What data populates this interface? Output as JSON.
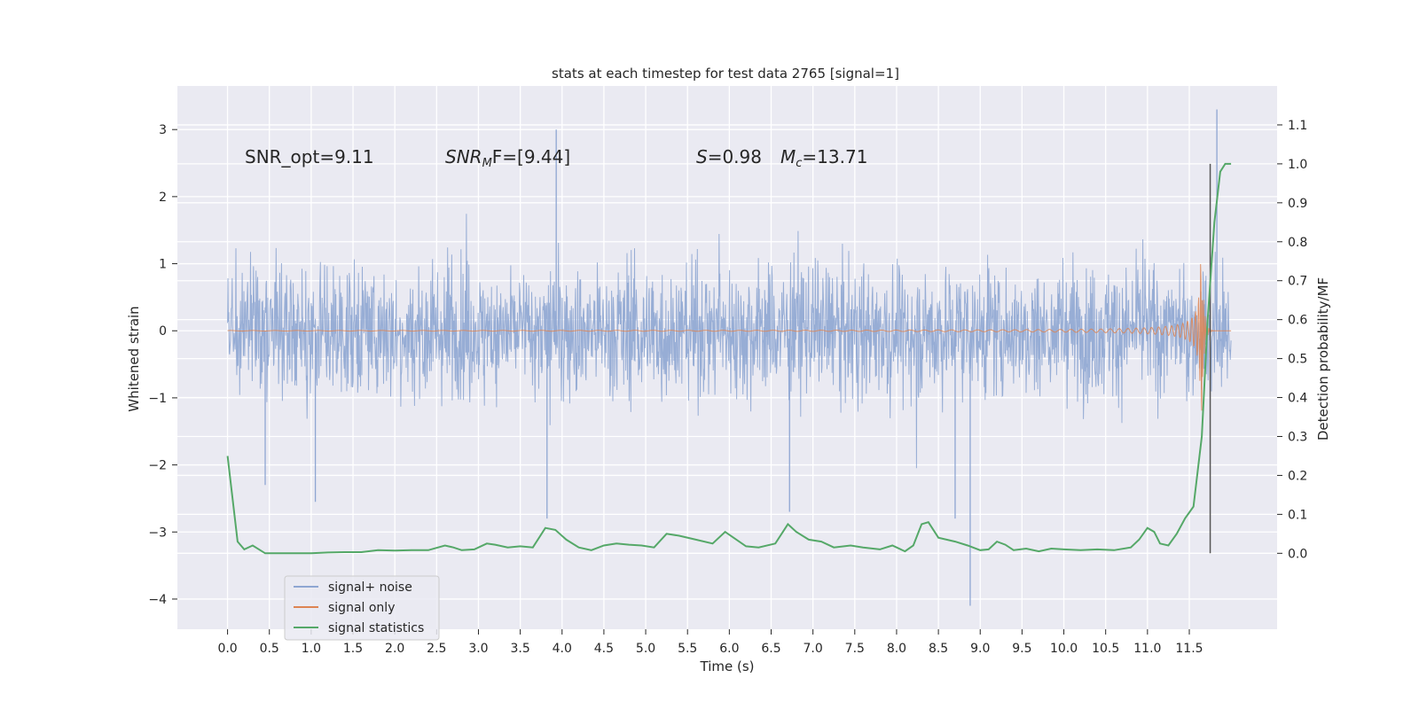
{
  "chart_data": {
    "type": "line",
    "title": "stats at each timestep for test data 2765 [signal=1]",
    "xlabel": "Time (s)",
    "ylabel": "Whitened strain",
    "y2label": "Detection probability/MF",
    "xlim": [
      -0.6,
      12.55
    ],
    "ylim": [
      -4.45,
      3.65
    ],
    "y2lim": [
      -0.195,
      1.2
    ],
    "xticks": [
      0.0,
      0.5,
      1.0,
      1.5,
      2.0,
      2.5,
      3.0,
      3.5,
      4.0,
      4.5,
      5.0,
      5.5,
      6.0,
      6.5,
      7.0,
      7.5,
      8.0,
      8.5,
      9.0,
      9.5,
      10.0,
      10.5,
      11.0,
      11.5
    ],
    "xtick_labels": [
      "0.0",
      "0.5",
      "1.0",
      "1.5",
      "2.0",
      "2.5",
      "3.0",
      "3.5",
      "4.0",
      "4.5",
      "5.0",
      "5.5",
      "6.0",
      "6.5",
      "7.0",
      "7.5",
      "8.0",
      "8.5",
      "9.0",
      "9.5",
      "10.0",
      "10.5",
      "11.0",
      "11.5"
    ],
    "yticks": [
      -4,
      -3,
      -2,
      -1,
      0,
      1,
      2,
      3
    ],
    "ytick_labels": [
      "−4",
      "−3",
      "−2",
      "−1",
      "0",
      "1",
      "2",
      "3"
    ],
    "y2ticks": [
      0.0,
      0.1,
      0.2,
      0.3,
      0.4,
      0.5,
      0.6,
      0.7,
      0.8,
      0.9,
      1.0,
      1.1
    ],
    "y2tick_labels": [
      "0.0",
      "0.1",
      "0.2",
      "0.3",
      "0.4",
      "0.5",
      "0.6",
      "0.7",
      "0.8",
      "0.9",
      "1.0",
      "1.1"
    ],
    "grid": true,
    "legend_position": "lower-left",
    "annotations": {
      "snr_opt": "SNR_opt=9.11",
      "snr_mf_main": "SNR",
      "snr_mf_sub": "M",
      "snr_mf_rest": "F=[9.44]",
      "s_main": "S",
      "s_rest": "=0.98",
      "mc_main": "M",
      "mc_sub": "c",
      "mc_rest": "=13.71"
    },
    "vline": {
      "x": 11.75,
      "y2_from": 0.0,
      "y2_to": 1.0
    },
    "series": [
      {
        "name": "signal+ noise",
        "color": "#8ea6d2",
        "kind": "noise",
        "x_range": [
          0.0,
          12.0
        ],
        "typical_range": [
          -1.6,
          1.4
        ],
        "peak_max": 3.3,
        "peak_min": -4.1
      },
      {
        "name": "signal only",
        "color": "#dd8452",
        "kind": "chirp",
        "x_range": [
          0.0,
          12.0
        ],
        "merger_time": 11.65,
        "peak_amplitude": 1.2
      },
      {
        "name": "signal statistics",
        "color": "#55a868",
        "axis": "y2",
        "x": [
          0.0,
          0.12,
          0.2,
          0.3,
          0.45,
          0.6,
          0.8,
          1.0,
          1.2,
          1.4,
          1.6,
          1.8,
          2.0,
          2.2,
          2.4,
          2.6,
          2.7,
          2.8,
          2.95,
          3.1,
          3.2,
          3.35,
          3.5,
          3.65,
          3.8,
          3.92,
          4.05,
          4.2,
          4.35,
          4.5,
          4.65,
          4.8,
          4.95,
          5.1,
          5.25,
          5.4,
          5.6,
          5.8,
          5.95,
          6.05,
          6.2,
          6.35,
          6.55,
          6.7,
          6.8,
          6.95,
          7.1,
          7.25,
          7.45,
          7.6,
          7.8,
          7.95,
          8.1,
          8.2,
          8.3,
          8.38,
          8.5,
          8.7,
          8.85,
          9.0,
          9.1,
          9.2,
          9.3,
          9.4,
          9.55,
          9.7,
          9.85,
          10.0,
          10.2,
          10.4,
          10.6,
          10.8,
          10.9,
          11.0,
          11.08,
          11.15,
          11.25,
          11.35,
          11.45,
          11.55,
          11.65,
          11.72,
          11.8,
          11.87,
          11.93,
          12.0
        ],
        "values": [
          0.25,
          0.03,
          0.01,
          0.02,
          0.0,
          0.0,
          0.0,
          0.0,
          0.002,
          0.003,
          0.003,
          0.008,
          0.007,
          0.008,
          0.008,
          0.02,
          0.015,
          0.008,
          0.01,
          0.025,
          0.022,
          0.015,
          0.018,
          0.015,
          0.065,
          0.06,
          0.035,
          0.015,
          0.008,
          0.02,
          0.025,
          0.022,
          0.02,
          0.015,
          0.05,
          0.045,
          0.035,
          0.025,
          0.055,
          0.04,
          0.018,
          0.015,
          0.025,
          0.075,
          0.055,
          0.035,
          0.03,
          0.015,
          0.02,
          0.015,
          0.01,
          0.02,
          0.005,
          0.02,
          0.075,
          0.08,
          0.04,
          0.03,
          0.02,
          0.008,
          0.01,
          0.03,
          0.022,
          0.008,
          0.012,
          0.005,
          0.012,
          0.01,
          0.008,
          0.01,
          0.008,
          0.015,
          0.035,
          0.065,
          0.055,
          0.025,
          0.02,
          0.05,
          0.09,
          0.12,
          0.3,
          0.6,
          0.85,
          0.98,
          1.0,
          1.0
        ]
      }
    ]
  }
}
